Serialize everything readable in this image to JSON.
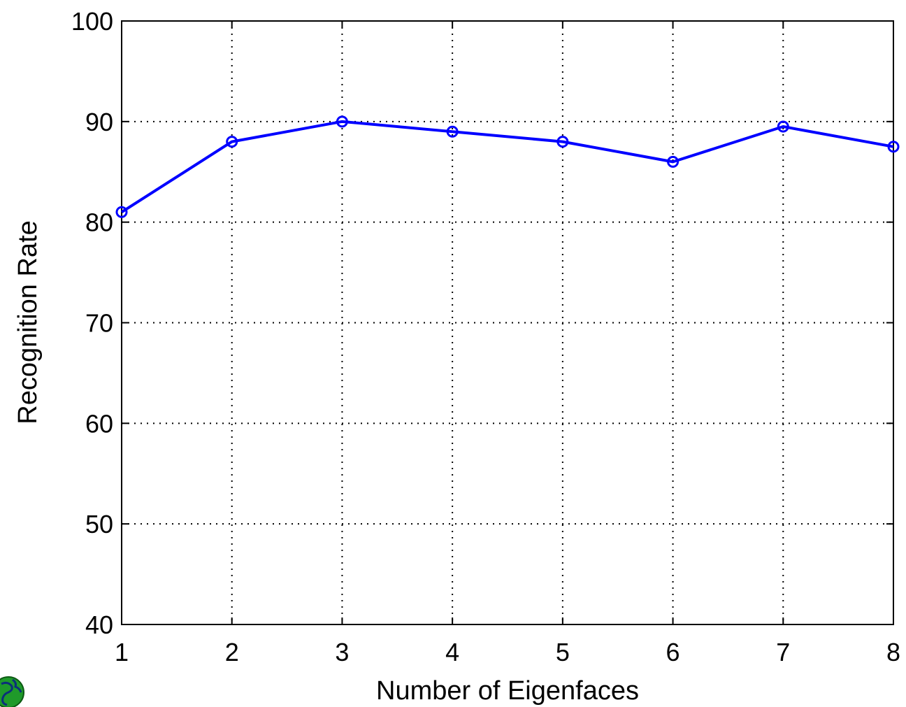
{
  "chart_data": {
    "type": "line",
    "title": "",
    "xlabel": "Number of Eigenfaces",
    "ylabel": "Recognition Rate",
    "xlim": [
      1,
      8
    ],
    "ylim": [
      40,
      100
    ],
    "xticks": [
      "1",
      "2",
      "3",
      "4",
      "5",
      "6",
      "7",
      "8"
    ],
    "yticks": [
      "40",
      "50",
      "60",
      "70",
      "80",
      "90",
      "100"
    ],
    "grid": "dotted",
    "series": [
      {
        "x": [
          1,
          2,
          3,
          4,
          5,
          6,
          7,
          8
        ],
        "values": [
          81,
          88,
          90,
          89,
          88,
          86,
          89.5,
          87.5
        ],
        "color": "#0000ff",
        "marker": "circle"
      }
    ]
  },
  "logo": {
    "icon": "globe-icon"
  }
}
